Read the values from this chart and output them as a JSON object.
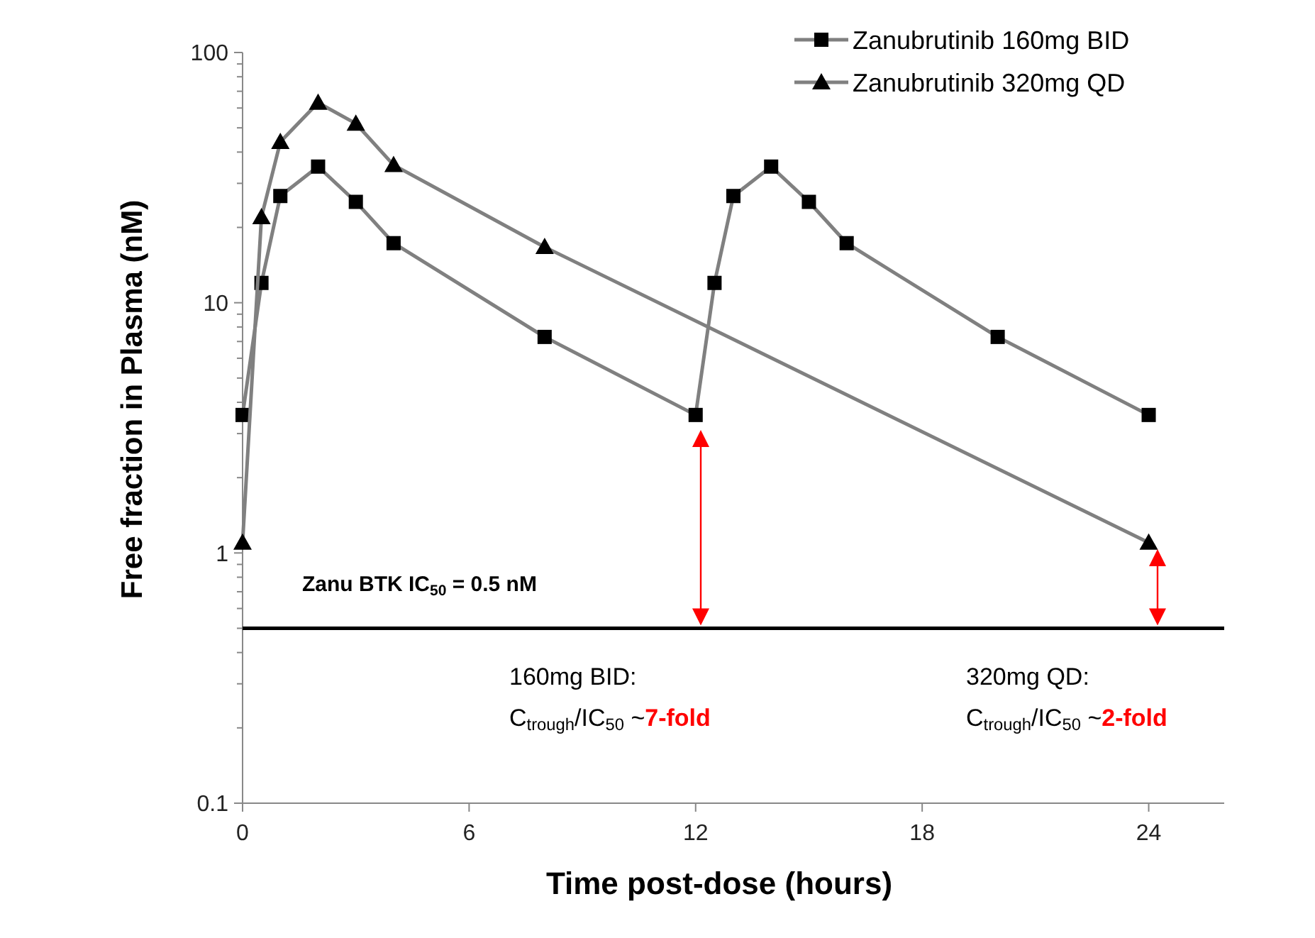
{
  "chart_data": {
    "type": "line",
    "xlabel": "Time post-dose (hours)",
    "ylabel": "Free fraction in Plasma  (nM)",
    "log": "y",
    "xlim": [
      0,
      26
    ],
    "xticks": [
      0,
      6,
      12,
      18,
      24
    ],
    "ylim": [
      0.1,
      100
    ],
    "yticks": [
      0.1,
      1,
      10,
      100
    ],
    "grid": false,
    "legend": "top right",
    "series": [
      {
        "name": "Zanubrutinib 160mg BID",
        "color": "#808080",
        "marker": "square",
        "x": [
          0,
          0.5,
          1,
          2,
          3,
          4,
          8,
          12,
          12.5,
          13,
          14,
          15,
          16,
          20,
          24
        ],
        "values": [
          3.56,
          12,
          26.7,
          35,
          25.3,
          17.3,
          7.3,
          3.56,
          12,
          26.7,
          35,
          25.3,
          17.3,
          7.3,
          3.56
        ]
      },
      {
        "name": "Zanubrutinib 320mg QD",
        "color": "#808080",
        "marker": "triangle",
        "x": [
          0,
          0.5,
          1,
          2,
          3,
          4,
          8,
          24
        ],
        "values": [
          1.1,
          22,
          43.9,
          63,
          52,
          35.5,
          16.7,
          1.1
        ]
      }
    ],
    "ref_lines": [
      {
        "axis": "y",
        "value": 0.5,
        "label": "Zanu BTK IC$_{50}$ = 0.5 nM",
        "color": "#000000"
      }
    ],
    "annotations": [
      "160mg BID:\nC$_{trough}$/IC$_{50}$ ~7-fold",
      "320mg QD:\nC$_{trough}$/IC$_{50}$ ~2-fold"
    ]
  }
}
